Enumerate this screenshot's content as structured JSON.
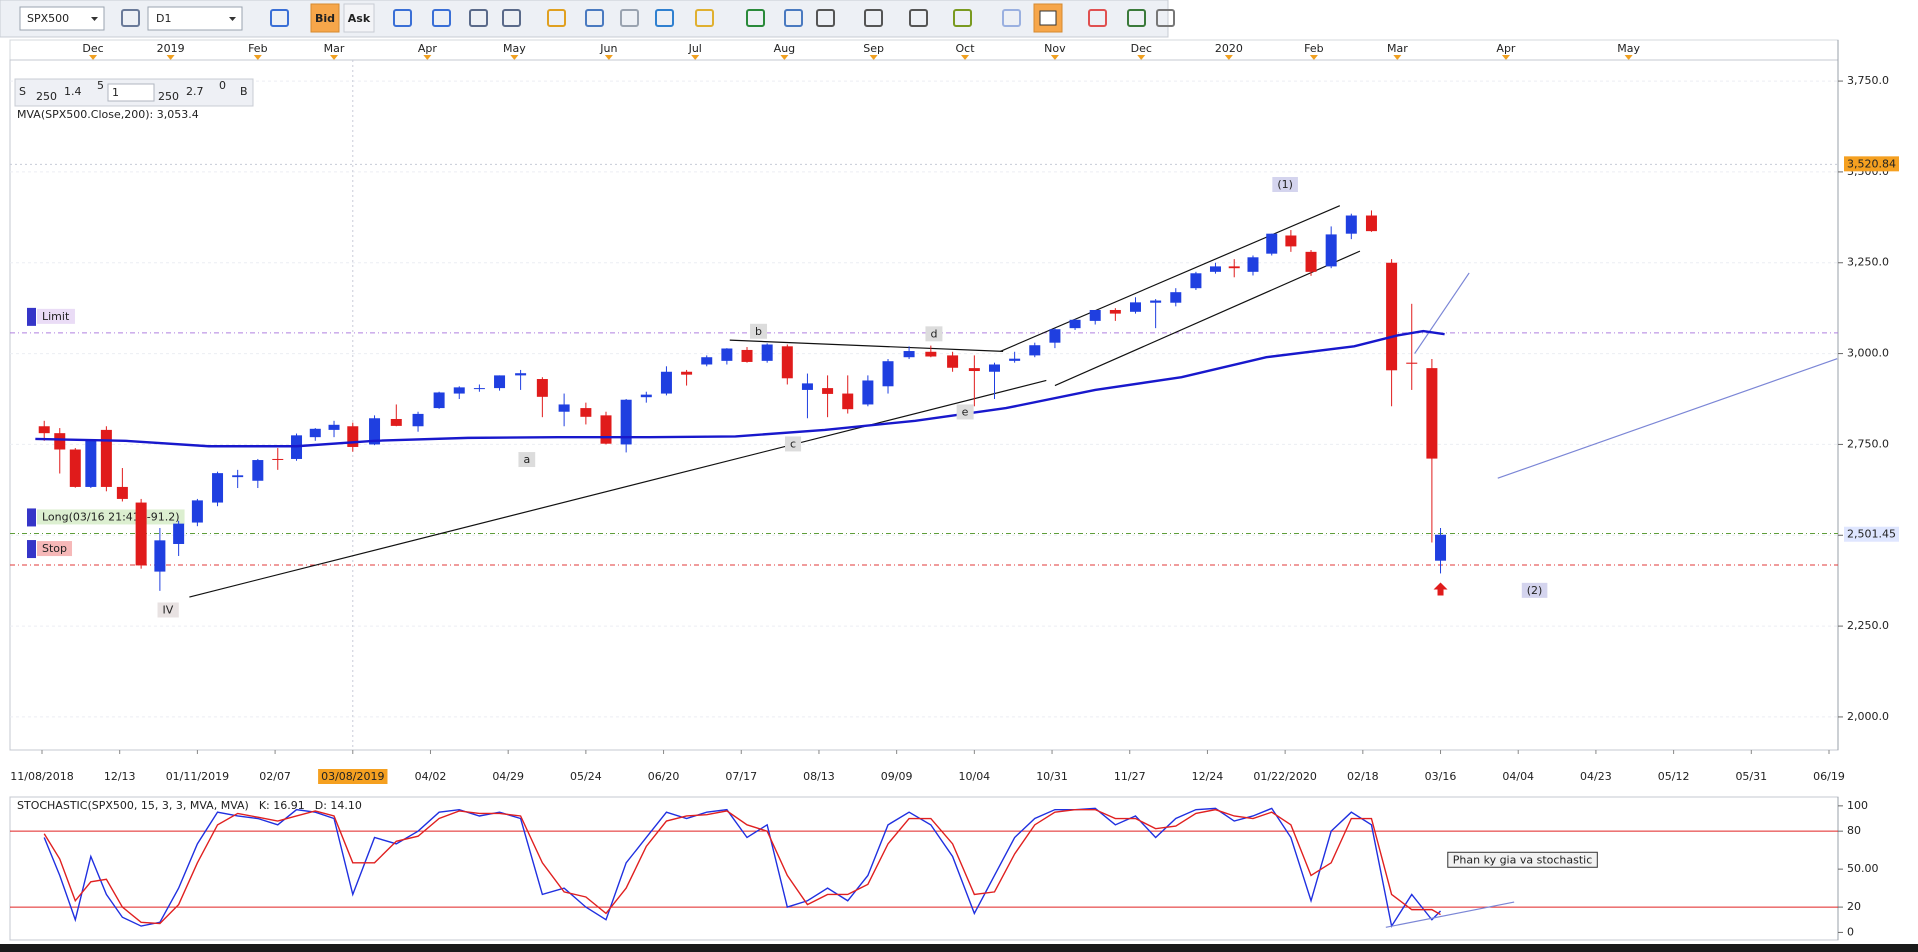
{
  "toolbar": {
    "symbol": "SPX500",
    "timeframe": "D1",
    "bid": "Bid",
    "ask": "Ask"
  },
  "quote": {
    "sell_label": "S",
    "sell_size": "250",
    "sell_price": "1.4",
    "sell_pip": "5",
    "amount": "1",
    "buy_size": "250",
    "buy_price": "2.7",
    "buy_pip": "0",
    "buy_label": "B"
  },
  "chart_data": [
    {
      "type": "candlestick",
      "x": [
        "2018-11-09",
        "2018-11-16",
        "2018-11-23",
        "2018-11-30",
        "2018-12-07",
        "2018-12-14",
        "2018-12-21",
        "2018-12-28",
        "2019-01-04",
        "2019-01-11",
        "2019-01-18",
        "2019-01-25",
        "2019-02-01",
        "2019-02-08",
        "2019-02-15",
        "2019-02-22",
        "2019-03-01",
        "2019-03-08",
        "2019-03-15",
        "2019-03-22",
        "2019-03-29",
        "2019-04-05",
        "2019-04-12",
        "2019-04-19",
        "2019-04-26",
        "2019-05-03",
        "2019-05-10",
        "2019-05-17",
        "2019-05-24",
        "2019-05-31",
        "2019-06-07",
        "2019-06-14",
        "2019-06-21",
        "2019-06-28",
        "2019-07-05",
        "2019-07-12",
        "2019-07-19",
        "2019-07-26",
        "2019-08-02",
        "2019-08-09",
        "2019-08-16",
        "2019-08-23",
        "2019-08-30",
        "2019-09-06",
        "2019-09-13",
        "2019-09-20",
        "2019-09-27",
        "2019-10-04",
        "2019-10-11",
        "2019-10-18",
        "2019-10-25",
        "2019-11-01",
        "2019-11-08",
        "2019-11-15",
        "2019-11-22",
        "2019-11-29",
        "2019-12-06",
        "2019-12-13",
        "2019-12-20",
        "2019-12-27",
        "2020-01-03",
        "2020-01-10",
        "2020-01-17",
        "2020-01-24",
        "2020-01-31",
        "2020-02-07",
        "2020-02-14",
        "2020-02-21",
        "2020-02-28",
        "2020-03-06",
        "2020-03-13",
        "2020-03-16"
      ],
      "open": [
        2800,
        2781,
        2736,
        2633,
        2790,
        2633,
        2590,
        2400,
        2476,
        2535,
        2590,
        2660,
        2650,
        2710,
        2710,
        2770,
        2790,
        2800,
        2750,
        2820,
        2800,
        2850,
        2890,
        2905,
        2905,
        2940,
        2930,
        2840,
        2850,
        2830,
        2750,
        2880,
        2890,
        2950,
        2970,
        2980,
        3010,
        2980,
        3020,
        2900,
        2905,
        2890,
        2860,
        2910,
        2990,
        3005,
        2995,
        2960,
        2950,
        2980,
        2995,
        3030,
        3070,
        3090,
        3120,
        3115,
        3140,
        3140,
        3180,
        3225,
        3240,
        3225,
        3275,
        3325,
        3280,
        3240,
        3330,
        3380,
        3250,
        2975,
        2960,
        2430
      ],
      "high": [
        2815,
        2795,
        2740,
        2760,
        2800,
        2685,
        2600,
        2520,
        2540,
        2600,
        2675,
        2680,
        2710,
        2740,
        2780,
        2795,
        2815,
        2810,
        2830,
        2860,
        2840,
        2895,
        2910,
        2915,
        2940,
        2955,
        2935,
        2890,
        2865,
        2840,
        2875,
        2895,
        2965,
        2955,
        2995,
        3015,
        3018,
        3028,
        3025,
        2945,
        2940,
        2940,
        2940,
        2985,
        3020,
        3022,
        3005,
        2995,
        2975,
        3005,
        3030,
        3070,
        3095,
        3120,
        3125,
        3155,
        3150,
        3180,
        3225,
        3250,
        3260,
        3270,
        3330,
        3340,
        3285,
        3350,
        3385,
        3394,
        3260,
        3137,
        2985,
        2520
      ],
      "low": [
        2760,
        2670,
        2631,
        2630,
        2621,
        2593,
        2408,
        2347,
        2443,
        2525,
        2580,
        2630,
        2630,
        2680,
        2705,
        2760,
        2770,
        2730,
        2748,
        2800,
        2785,
        2848,
        2875,
        2895,
        2898,
        2900,
        2825,
        2800,
        2805,
        2750,
        2728,
        2865,
        2885,
        2912,
        2965,
        2970,
        2975,
        2975,
        2915,
        2822,
        2825,
        2835,
        2855,
        2890,
        2985,
        2990,
        2950,
        2855,
        2875,
        2975,
        2990,
        3015,
        3065,
        3080,
        3090,
        3110,
        3070,
        3130,
        3175,
        3220,
        3210,
        3215,
        3270,
        3280,
        3214,
        3235,
        3315,
        3335,
        2855,
        2900,
        2480,
        2395
      ],
      "close": [
        2781,
        2736,
        2633,
        2760,
        2633,
        2600,
        2417,
        2486,
        2532,
        2596,
        2671,
        2665,
        2707,
        2708,
        2775,
        2793,
        2804,
        2743,
        2822,
        2801,
        2834,
        2893,
        2907,
        2905,
        2940,
        2946,
        2881,
        2860,
        2826,
        2752,
        2873,
        2887,
        2950,
        2942,
        2990,
        3014,
        2977,
        3025,
        2932,
        2918,
        2889,
        2847,
        2926,
        2979,
        3007,
        2992,
        2961,
        2952,
        2970,
        2986,
        3023,
        3067,
        3093,
        3120,
        3110,
        3141,
        3146,
        3169,
        3221,
        3240,
        3235,
        3265,
        3330,
        3295,
        3225,
        3328,
        3380,
        3337,
        2954,
        2972,
        2711,
        2501.45
      ],
      "up_color": "#1f3fe0",
      "down_color": "#e01b1b",
      "series": [
        {
          "name": "MVA(SPX500.Close,200): 3,053.4",
          "color": "#1818cc",
          "x": [
            "2018-11-05",
            "2018-12-15",
            "2019-01-15",
            "2019-02-15",
            "2019-03-15",
            "2019-04-15",
            "2019-05-15",
            "2019-06-15",
            "2019-07-15",
            "2019-08-15",
            "2019-09-15",
            "2019-10-15",
            "2019-11-15",
            "2019-12-15",
            "2020-01-15",
            "2020-02-15",
            "2020-03-01",
            "2020-03-10",
            "2020-03-17"
          ],
          "values": [
            2765,
            2760,
            2745,
            2745,
            2760,
            2768,
            2770,
            2770,
            2772,
            2790,
            2815,
            2850,
            2900,
            2935,
            2990,
            3020,
            3050,
            3062,
            3053.4
          ]
        }
      ],
      "ylim": [
        1909,
        3808
      ],
      "yticks": [
        {
          "value": 2000,
          "label": "2,000.0"
        },
        {
          "value": 2250,
          "label": "2,250.0"
        },
        {
          "value": 2500,
          "label": "2,500.0"
        },
        {
          "value": 2750,
          "label": "2,750.0"
        },
        {
          "value": 3000,
          "label": "3,000.0"
        },
        {
          "value": 3250,
          "label": "3,250.0"
        },
        {
          "value": 3500,
          "label": "3,500.0"
        },
        {
          "value": 3750,
          "label": "3,750.0"
        }
      ],
      "grid": true,
      "xticks": [
        {
          "value": "2018-11-08",
          "label": "11/08/2018"
        },
        {
          "value": "2018-12-13",
          "label": "12/13"
        },
        {
          "value": "2019-01-11",
          "label": "01/11/2019"
        },
        {
          "value": "2019-02-07",
          "label": "02/07"
        },
        {
          "value": "2019-03-08",
          "label": "03/08/2019"
        },
        {
          "value": "2019-04-02",
          "label": "04/02"
        },
        {
          "value": "2019-04-29",
          "label": "04/29"
        },
        {
          "value": "2019-05-24",
          "label": "05/24"
        },
        {
          "value": "2019-06-20",
          "label": "06/20"
        },
        {
          "value": "2019-07-17",
          "label": "07/17"
        },
        {
          "value": "2019-08-13",
          "label": "08/13"
        },
        {
          "value": "2019-09-09",
          "label": "09/09"
        },
        {
          "value": "2019-10-04",
          "label": "10/04"
        },
        {
          "value": "2019-10-31",
          "label": "10/31"
        },
        {
          "value": "2019-11-27",
          "label": "11/27"
        },
        {
          "value": "2019-12-24",
          "label": "12/24"
        },
        {
          "value": "2020-01-22",
          "label": "01/22/2020"
        },
        {
          "value": "2020-02-18",
          "label": "02/18"
        },
        {
          "value": "2020-03-16",
          "label": "03/16"
        },
        {
          "value": "2020-04-04",
          "label": "04/04"
        },
        {
          "value": "2020-04-23",
          "label": "04/23"
        },
        {
          "value": "2020-05-12",
          "label": "05/12"
        },
        {
          "value": "2020-05-31",
          "label": "05/31"
        },
        {
          "value": "2020-06-19",
          "label": "06/19"
        }
      ],
      "month_labels": [
        {
          "value": "2018-12-01",
          "label": "Dec"
        },
        {
          "value": "2019-01-01",
          "label": "2019"
        },
        {
          "value": "2019-02-01",
          "label": "Feb"
        },
        {
          "value": "2019-03-01",
          "label": "Mar"
        },
        {
          "value": "2019-04-01",
          "label": "Apr"
        },
        {
          "value": "2019-05-01",
          "label": "May"
        },
        {
          "value": "2019-06-01",
          "label": "Jun"
        },
        {
          "value": "2019-07-01",
          "label": "Jul"
        },
        {
          "value": "2019-08-01",
          "label": "Aug"
        },
        {
          "value": "2019-09-01",
          "label": "Sep"
        },
        {
          "value": "2019-10-01",
          "label": "Oct"
        },
        {
          "value": "2019-11-01",
          "label": "Nov"
        },
        {
          "value": "2019-12-01",
          "label": "Dec"
        },
        {
          "value": "2020-01-01",
          "label": "2020"
        },
        {
          "value": "2020-02-01",
          "label": "Feb"
        },
        {
          "value": "2020-03-01",
          "label": "Mar"
        },
        {
          "value": "2020-04-01",
          "label": "Apr"
        },
        {
          "value": "2020-05-01",
          "label": "May"
        }
      ],
      "crosshair": {
        "x": "2019-03-08",
        "y": {
          "value": 3520.84,
          "label": "3,520.84"
        }
      },
      "last_price": {
        "value": 2501.45,
        "label": "2,501.45"
      },
      "orders": [
        {
          "label": "Limit",
          "value": 3057,
          "color": "#b080e0",
          "bg": "#eadcf6"
        },
        {
          "label": "Long(03/16 21:41, -91.2)",
          "value": 2505,
          "color": "#5e9e3a",
          "bg": "#dcefd0"
        },
        {
          "label": "Stop",
          "value": 2418,
          "color": "#e23a3a",
          "bg": "#f6b8b8"
        }
      ],
      "annotations": [
        {
          "text": "(1)",
          "x": "2020-01-22",
          "y": 3464,
          "color": "#2a2a9a",
          "bg": "#d4d4ee"
        },
        {
          "text": "IV",
          "x": "2018-12-31",
          "y": 2293,
          "color": "#b02020",
          "bg": "#e8e2e2"
        },
        {
          "text": "a",
          "x": "2019-05-05",
          "y": 2707,
          "color": "#222222",
          "bg": "#dcdcdc"
        },
        {
          "text": "b",
          "x": "2019-07-23",
          "y": 3060,
          "color": "#222222",
          "bg": "#dcdcdc"
        },
        {
          "text": "c",
          "x": "2019-08-04",
          "y": 2750,
          "color": "#222222",
          "bg": "#dcdcdc"
        },
        {
          "text": "d",
          "x": "2019-09-21",
          "y": 3053,
          "color": "#222222",
          "bg": "#dcdcdc"
        },
        {
          "text": "e",
          "x": "2019-10-01",
          "y": 2838,
          "color": "#222222",
          "bg": "#dcdcdc"
        },
        {
          "text": "(2)",
          "x": "2020-04-08",
          "y": 2347,
          "color": "#2a2a9a",
          "bg": "#d4d4ee"
        }
      ],
      "trendlines": [
        {
          "x": [
            "2019-01-08",
            "2019-10-29"
          ],
          "y": [
            2330,
            2926
          ],
          "color": "#111111"
        },
        {
          "x": [
            "2019-07-13",
            "2019-10-14"
          ],
          "y": [
            3037,
            3006
          ],
          "color": "#111111"
        },
        {
          "x": [
            "2019-10-13",
            "2020-02-10"
          ],
          "y": [
            3006,
            3407
          ],
          "color": "#111111"
        },
        {
          "x": [
            "2019-11-01",
            "2020-02-17"
          ],
          "y": [
            2912,
            3282
          ],
          "color": "#111111"
        },
        {
          "x": [
            "2020-03-07",
            "2020-03-23"
          ],
          "y": [
            3000,
            3222
          ],
          "color": "#7b86d6"
        },
        {
          "x": [
            "2020-03-30",
            "2020-06-21"
          ],
          "y": [
            2657,
            2986
          ],
          "color": "#7b86d6"
        }
      ],
      "signals": [
        {
          "x": "2020-03-16",
          "y": 2370,
          "color": "#e01b1b"
        }
      ]
    },
    {
      "type": "line",
      "title": "STOCHASTIC(SPX500, 15, 3, 3, MVA, MVA)",
      "x": [
        "2018-11-09",
        "2018-11-16",
        "2018-11-23",
        "2018-11-30",
        "2018-12-07",
        "2018-12-14",
        "2018-12-21",
        "2018-12-28",
        "2019-01-04",
        "2019-01-11",
        "2019-01-18",
        "2019-01-25",
        "2019-02-01",
        "2019-02-08",
        "2019-02-15",
        "2019-02-22",
        "2019-03-01",
        "2019-03-08",
        "2019-03-15",
        "2019-03-22",
        "2019-03-29",
        "2019-04-05",
        "2019-04-12",
        "2019-04-19",
        "2019-04-26",
        "2019-05-03",
        "2019-05-10",
        "2019-05-17",
        "2019-05-24",
        "2019-05-31",
        "2019-06-07",
        "2019-06-14",
        "2019-06-21",
        "2019-06-28",
        "2019-07-05",
        "2019-07-12",
        "2019-07-19",
        "2019-07-26",
        "2019-08-02",
        "2019-08-09",
        "2019-08-16",
        "2019-08-23",
        "2019-08-30",
        "2019-09-06",
        "2019-09-13",
        "2019-09-20",
        "2019-09-27",
        "2019-10-04",
        "2019-10-11",
        "2019-10-18",
        "2019-10-25",
        "2019-11-01",
        "2019-11-08",
        "2019-11-15",
        "2019-11-22",
        "2019-11-29",
        "2019-12-06",
        "2019-12-13",
        "2019-12-20",
        "2019-12-27",
        "2020-01-03",
        "2020-01-10",
        "2020-01-17",
        "2020-01-24",
        "2020-01-31",
        "2020-02-07",
        "2020-02-14",
        "2020-02-21",
        "2020-02-28",
        "2020-03-06",
        "2020-03-13",
        "2020-03-16"
      ],
      "series": [
        {
          "name": "K: 16.91",
          "color": "#2030e0",
          "values": [
            75,
            45,
            10,
            60,
            30,
            12,
            5,
            8,
            35,
            70,
            95,
            92,
            90,
            85,
            97,
            95,
            90,
            30,
            75,
            70,
            80,
            95,
            97,
            92,
            95,
            90,
            30,
            35,
            20,
            10,
            55,
            75,
            95,
            90,
            95,
            97,
            75,
            85,
            20,
            25,
            35,
            25,
            45,
            85,
            95,
            85,
            60,
            15,
            45,
            75,
            90,
            97,
            97,
            98,
            85,
            92,
            75,
            90,
            97,
            98,
            88,
            92,
            98,
            75,
            25,
            80,
            95,
            85,
            5,
            30,
            10,
            16.91
          ]
        },
        {
          "name": "D: 14.10",
          "color": "#e02020",
          "values": [
            78,
            58,
            25,
            40,
            42,
            20,
            8,
            7,
            22,
            55,
            85,
            94,
            91,
            88,
            92,
            96,
            92,
            55,
            55,
            72,
            76,
            90,
            96,
            94,
            94,
            92,
            55,
            32,
            28,
            15,
            35,
            68,
            88,
            92,
            93,
            96,
            85,
            80,
            45,
            22,
            30,
            30,
            38,
            70,
            90,
            90,
            70,
            30,
            32,
            62,
            85,
            95,
            97,
            97,
            90,
            90,
            82,
            84,
            94,
            97,
            92,
            90,
            95,
            85,
            45,
            55,
            90,
            90,
            30,
            18,
            18,
            14.1
          ]
        }
      ],
      "ylim": [
        -6,
        107
      ],
      "yticks": [
        0,
        20,
        {
          "value": 50,
          "label": "50.00"
        },
        80,
        100
      ],
      "levels": [
        20,
        80
      ],
      "level_color": "#e02020",
      "annotation": {
        "text": "Phan ky gia va stochastic",
        "x": "2020-03-19",
        "y": 57
      },
      "trendlines": [
        {
          "x": [
            "2020-02-26",
            "2020-04-03"
          ],
          "y": [
            4,
            24
          ],
          "color": "#7b86d6"
        }
      ]
    }
  ]
}
